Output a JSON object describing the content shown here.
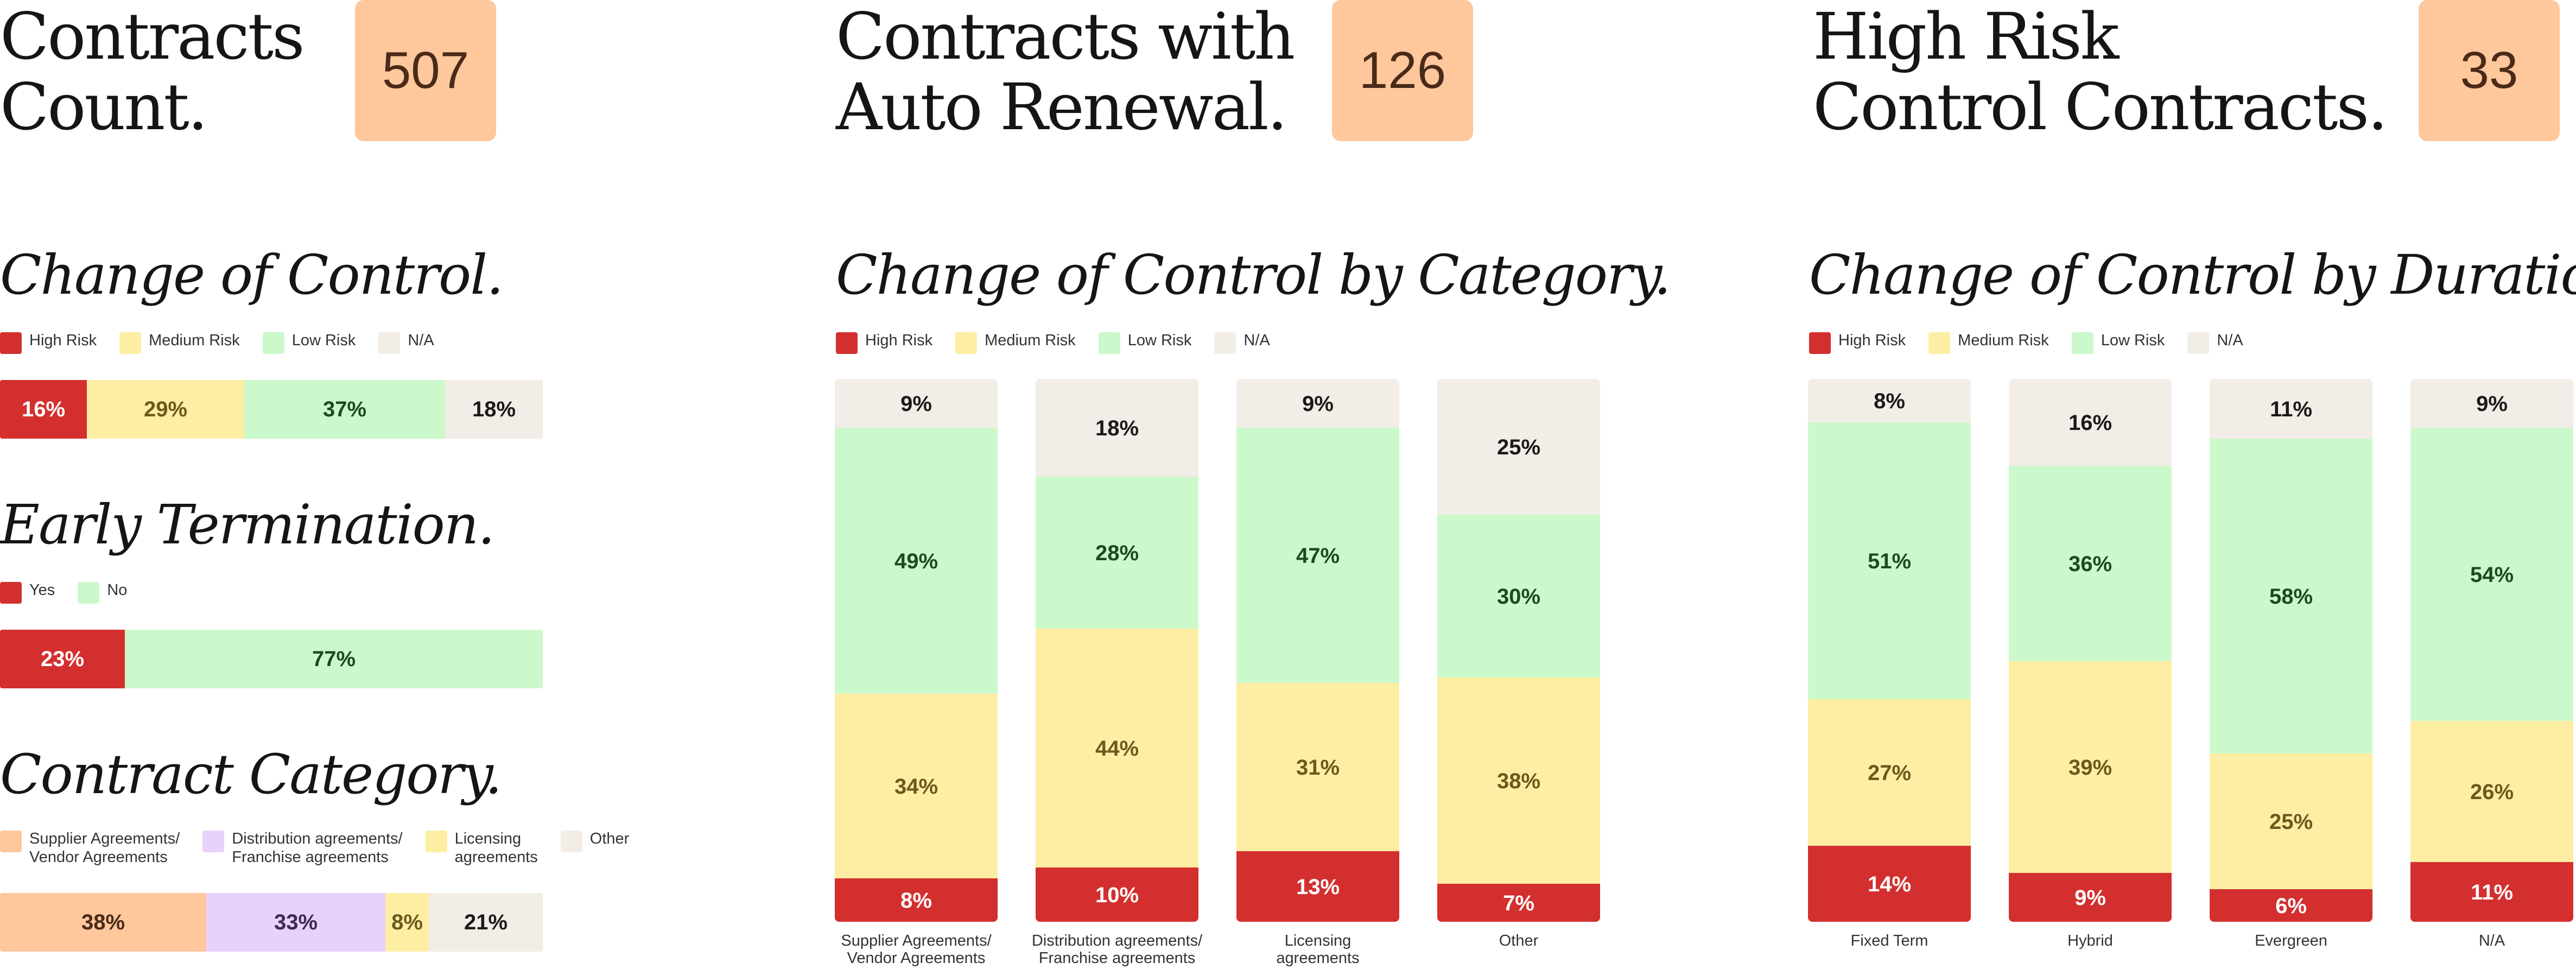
{
  "kpis": [
    {
      "title": "Contracts\nCount.",
      "value": "507"
    },
    {
      "title": "Contracts with\nAuto Renewal.",
      "value": "126"
    },
    {
      "title": "High Risk\nControl Contracts.",
      "value": "33"
    }
  ],
  "colors": {
    "high": "#d32f2f",
    "medium": "#fdeea3",
    "low": "#ccf9cc",
    "na": "#f2ede6",
    "supplier": "#fec79c",
    "distribution": "#e8d1fa",
    "licensing": "#fdeea3",
    "other": "#f2ede6",
    "kpi_box": "#fec79c"
  },
  "sections": {
    "change_of_control": {
      "title": "Change of Control.",
      "legend": [
        "High Risk",
        "Medium Risk",
        "Low Risk",
        "N/A"
      ]
    },
    "early_termination": {
      "title": "Early Termination.",
      "legend": [
        "Yes",
        "No"
      ]
    },
    "contract_category": {
      "title": "Contract Category.",
      "legend": [
        "Supplier Agreements/\nVendor Agreements",
        "Distribution agreements/\nFranchise agreements",
        "Licensing\nagreements",
        "Other"
      ]
    },
    "by_category": {
      "title": "Change of Control by Category.",
      "legend": [
        "High Risk",
        "Medium Risk",
        "Low Risk",
        "N/A"
      ]
    },
    "by_duration": {
      "title": "Change of Control by Duration.",
      "legend": [
        "High Risk",
        "Medium Risk",
        "Low Risk",
        "N/A"
      ]
    }
  },
  "chart_data": [
    {
      "type": "bar",
      "orientation": "horizontal",
      "stacked": true,
      "title": "Change of Control.",
      "series": [
        {
          "name": "High Risk",
          "values": [
            16
          ],
          "label": "16%"
        },
        {
          "name": "Medium Risk",
          "values": [
            29
          ],
          "label": "29%"
        },
        {
          "name": "Low Risk",
          "values": [
            37
          ],
          "label": "37%"
        },
        {
          "name": "N/A",
          "values": [
            18
          ],
          "label": "18%"
        }
      ]
    },
    {
      "type": "bar",
      "orientation": "horizontal",
      "stacked": true,
      "title": "Early Termination.",
      "series": [
        {
          "name": "Yes",
          "values": [
            23
          ],
          "label": "23%"
        },
        {
          "name": "No",
          "values": [
            77
          ],
          "label": "77%"
        }
      ]
    },
    {
      "type": "bar",
      "orientation": "horizontal",
      "stacked": true,
      "title": "Contract Category.",
      "series": [
        {
          "name": "Supplier Agreements/ Vendor Agreements",
          "values": [
            38
          ],
          "label": "38%"
        },
        {
          "name": "Distribution agreements/ Franchise agreements",
          "values": [
            33
          ],
          "label": "33%"
        },
        {
          "name": "Licensing agreements",
          "values": [
            8
          ],
          "label": "8%"
        },
        {
          "name": "Other",
          "values": [
            21
          ],
          "label": "21%"
        }
      ]
    },
    {
      "type": "bar",
      "orientation": "vertical",
      "stacked": true,
      "title": "Change of Control by Category.",
      "categories": [
        "Supplier Agreements/\nVendor Agreements",
        "Distribution agreements/\nFranchise agreements",
        "Licensing\nagreements",
        "Other"
      ],
      "series": [
        {
          "name": "High Risk",
          "values": [
            8,
            10,
            13,
            7
          ],
          "labels": [
            "8%",
            "10%",
            "13%",
            "7%"
          ]
        },
        {
          "name": "Medium Risk",
          "values": [
            34,
            44,
            31,
            38
          ],
          "labels": [
            "34%",
            "44%",
            "31%",
            "38%"
          ]
        },
        {
          "name": "Low Risk",
          "values": [
            49,
            28,
            47,
            30
          ],
          "labels": [
            "49%",
            "28%",
            "47%",
            "30%"
          ]
        },
        {
          "name": "N/A",
          "values": [
            9,
            18,
            9,
            25
          ],
          "labels": [
            "9%",
            "18%",
            "9%",
            "25%"
          ]
        }
      ]
    },
    {
      "type": "bar",
      "orientation": "vertical",
      "stacked": true,
      "title": "Change of Control by Duration.",
      "categories": [
        "Fixed Term",
        "Hybrid",
        "Evergreen",
        "N/A"
      ],
      "series": [
        {
          "name": "High Risk",
          "values": [
            14,
            9,
            6,
            11
          ],
          "labels": [
            "14%",
            "9%",
            "6%",
            "11%"
          ]
        },
        {
          "name": "Medium Risk",
          "values": [
            27,
            39,
            25,
            26
          ],
          "labels": [
            "27%",
            "39%",
            "25%",
            "26%"
          ]
        },
        {
          "name": "Low Risk",
          "values": [
            51,
            36,
            58,
            54
          ],
          "labels": [
            "51%",
            "36%",
            "58%",
            "54%"
          ]
        },
        {
          "name": "N/A",
          "values": [
            8,
            16,
            11,
            9
          ],
          "labels": [
            "8%",
            "16%",
            "11%",
            "9%"
          ]
        }
      ]
    }
  ]
}
